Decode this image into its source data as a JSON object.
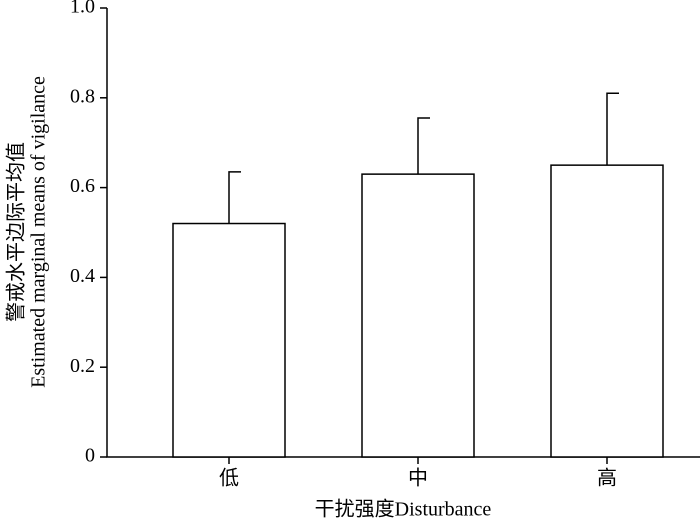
{
  "chart_data": {
    "type": "bar",
    "y_label": [
      "警戒水平边际平均值",
      "Estimated marginal means of vigilance"
    ],
    "x_label": "干扰强度Disturbance",
    "categories": [
      "低",
      "中",
      "高"
    ],
    "values": [
      0.52,
      0.63,
      0.65
    ],
    "errors": [
      0.115,
      0.125,
      0.16
    ],
    "color": "#ffffff",
    "ylim": [
      0,
      1
    ],
    "yticks": [
      0,
      0.2,
      0.4,
      0.6,
      0.8,
      {
        "value": 1,
        "label": "1.0"
      }
    ]
  }
}
